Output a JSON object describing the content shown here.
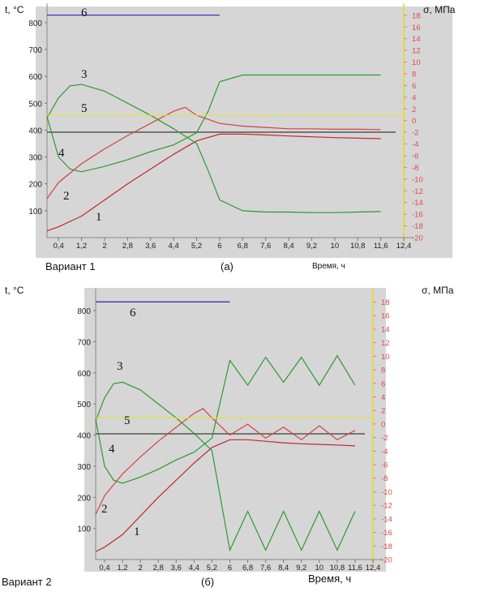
{
  "chart_data": [
    {
      "type": "line",
      "left_axis_label": "t, °C",
      "right_axis_label": "σ, МПа",
      "xlabel": "Время, ч",
      "footer_left": "Вариант 1",
      "footer_center": "(а)",
      "x_ticks": [
        "0,4",
        "1,2",
        "2",
        "2,8",
        "3,6",
        "4,4",
        "5,2",
        "6",
        "6,8",
        "7,6",
        "8,4",
        "9,2",
        "10",
        "10,8",
        "11,6",
        "12,4"
      ],
      "x_tick_values": [
        0.4,
        1.2,
        2,
        2.8,
        3.6,
        4.4,
        5.2,
        6,
        6.8,
        7.6,
        8.4,
        9.2,
        10,
        10.8,
        11.6,
        12.4
      ],
      "xlim": [
        0,
        12.4
      ],
      "y_left_ticks": [
        "100",
        "200",
        "300",
        "400",
        "500",
        "600",
        "700",
        "800"
      ],
      "ylim_left": [
        0,
        860
      ],
      "y_right_ticks": [
        "18",
        "16",
        "14",
        "12",
        "10",
        "8",
        "6",
        "4",
        "2",
        "0",
        "-2",
        "-4",
        "-6",
        "-8",
        "-10",
        "-12",
        "-14",
        "-16",
        "-18",
        "-20"
      ],
      "ylim_right": [
        -20,
        19.5
      ],
      "series": [
        {
          "label": "1",
          "axis": "left",
          "color": "#c0282c",
          "x": [
            0,
            0.4,
            1.2,
            2,
            2.8,
            3.6,
            4.4,
            5.2,
            6,
            6.8,
            7.6,
            8.4,
            9.2,
            10,
            10.8,
            11.6
          ],
          "y": [
            25,
            40,
            80,
            140,
            200,
            255,
            310,
            360,
            385,
            385,
            382,
            378,
            375,
            372,
            370,
            368
          ]
        },
        {
          "label": "2",
          "axis": "left",
          "color": "#d84040",
          "x": [
            0,
            0.4,
            1.2,
            2,
            2.8,
            3.6,
            4.4,
            4.8,
            5.2,
            6,
            6.8,
            7.6,
            8.4,
            9.2,
            10,
            10.8,
            11.6
          ],
          "y": [
            145,
            205,
            275,
            330,
            380,
            425,
            470,
            485,
            455,
            425,
            415,
            410,
            405,
            405,
            403,
            403,
            402
          ]
        },
        {
          "label": "3",
          "axis": "left",
          "color": "#2e9a2e",
          "x": [
            0,
            0.4,
            0.8,
            1.2,
            2,
            2.8,
            3.6,
            4.4,
            5.2,
            5.6,
            6,
            6.8,
            7.6,
            8.4,
            9.2,
            10,
            10.8,
            11.6
          ],
          "y": [
            445,
            520,
            565,
            570,
            545,
            500,
            455,
            405,
            350,
            250,
            140,
            100,
            95,
            95,
            93,
            93,
            95,
            97
          ]
        },
        {
          "label": "4",
          "axis": "left",
          "color": "#2e9a2e",
          "x": [
            0,
            0.4,
            0.8,
            1.2,
            2,
            2.8,
            3.6,
            4.4,
            5.2,
            5.6,
            6,
            6.8,
            7.6,
            8.4,
            9.2,
            10,
            10.8,
            11.6
          ],
          "y": [
            450,
            300,
            255,
            245,
            265,
            290,
            320,
            345,
            390,
            470,
            580,
            605,
            605,
            605,
            605,
            605,
            605,
            605
          ]
        },
        {
          "label": "5",
          "axis": "left",
          "color": "#e0e040",
          "x": [
            0,
            12.4
          ],
          "y": [
            455,
            455
          ]
        },
        {
          "label": "6",
          "axis": "left",
          "color": "#3434c0",
          "x": [
            0,
            6
          ],
          "y": [
            828,
            828
          ]
        }
      ]
    },
    {
      "type": "line",
      "left_axis_label": "t, °C",
      "right_axis_label": "σ, МПа",
      "xlabel": "Время, ч",
      "footer_left": "Вариант 2",
      "footer_center": "(б)",
      "x_ticks": [
        "0,4",
        "1,2",
        "2",
        "2,8",
        "3,6",
        "4,4",
        "5,2",
        "6",
        "6,8",
        "7,6",
        "8,4",
        "9,2",
        "10",
        "10,8",
        "11,6",
        "12,4"
      ],
      "x_tick_values": [
        0.4,
        1.2,
        2,
        2.8,
        3.6,
        4.4,
        5.2,
        6,
        6.8,
        7.6,
        8.4,
        9.2,
        10,
        10.8,
        11.6,
        12.4
      ],
      "xlim": [
        0,
        12.4
      ],
      "y_left_ticks": [
        "100",
        "200",
        "300",
        "400",
        "500",
        "600",
        "700",
        "800"
      ],
      "ylim_left": [
        0,
        860
      ],
      "y_right_ticks": [
        "18",
        "16",
        "14",
        "12",
        "10",
        "8",
        "6",
        "4",
        "2",
        "0",
        "-2",
        "-4",
        "-6",
        "-8",
        "-10",
        "-12",
        "-14",
        "-16",
        "-18",
        "-20"
      ],
      "ylim_right": [
        -20,
        19.5
      ],
      "series": [
        {
          "label": "1",
          "axis": "left",
          "color": "#c0282c",
          "x": [
            0,
            0.4,
            1.2,
            2,
            2.8,
            3.6,
            4.4,
            5.2,
            6,
            6.8,
            7.6,
            8.4,
            9.2,
            10,
            10.8,
            11.6
          ],
          "y": [
            25,
            40,
            80,
            140,
            200,
            255,
            310,
            360,
            385,
            385,
            380,
            375,
            372,
            370,
            368,
            365
          ]
        },
        {
          "label": "2",
          "axis": "left",
          "color": "#d84040",
          "x": [
            0,
            0.4,
            1.2,
            2,
            2.8,
            3.6,
            4.4,
            4.8,
            5.2,
            6,
            6.8,
            7.6,
            8.4,
            9.2,
            10,
            10.8,
            11.6
          ],
          "y": [
            145,
            205,
            275,
            330,
            380,
            425,
            470,
            485,
            455,
            400,
            435,
            390,
            425,
            385,
            430,
            385,
            415
          ]
        },
        {
          "label": "3",
          "axis": "left",
          "color": "#2e9a2e",
          "x": [
            0,
            0.4,
            0.8,
            1.2,
            2,
            2.8,
            3.6,
            4.4,
            5.2,
            6,
            6.8,
            7.6,
            8.4,
            9.2,
            10,
            10.8,
            11.6
          ],
          "y": [
            445,
            520,
            565,
            570,
            545,
            500,
            455,
            405,
            350,
            30,
            155,
            30,
            155,
            30,
            155,
            30,
            155
          ]
        },
        {
          "label": "4",
          "axis": "left",
          "color": "#2e9a2e",
          "x": [
            0,
            0.4,
            0.8,
            1.2,
            2,
            2.8,
            3.6,
            4.4,
            5.2,
            6,
            6.8,
            7.6,
            8.4,
            9.2,
            10,
            10.8,
            11.6
          ],
          "y": [
            450,
            300,
            255,
            245,
            265,
            290,
            320,
            345,
            390,
            640,
            560,
            650,
            570,
            650,
            560,
            655,
            560
          ]
        },
        {
          "label": "5",
          "axis": "left",
          "color": "#e0e040",
          "x": [
            0,
            12.4
          ],
          "y": [
            455,
            455
          ]
        },
        {
          "label": "6",
          "axis": "left",
          "color": "#3434c0",
          "x": [
            0,
            6
          ],
          "y": [
            828,
            828
          ]
        }
      ]
    }
  ]
}
